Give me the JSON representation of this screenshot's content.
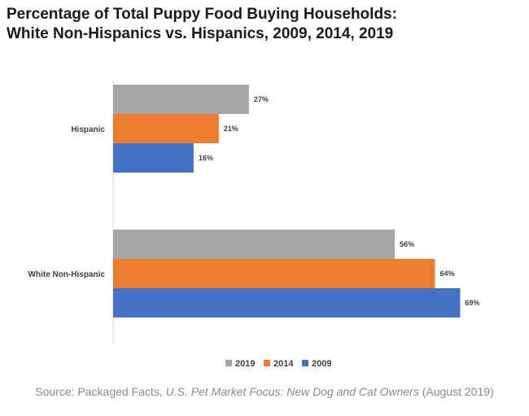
{
  "chart_data": {
    "type": "bar",
    "orientation": "horizontal",
    "title_lines": [
      "Percentage of Total Puppy Food Buying Households:",
      "White Non-Hispanics vs. Hispanics, 2009, 2014, 2019"
    ],
    "categories": [
      "Hispanic",
      "White Non-Hispanic"
    ],
    "series": [
      {
        "name": "2019",
        "color": "#a5a5a5",
        "values": [
          27,
          56
        ],
        "labels": [
          "27%",
          "56%"
        ]
      },
      {
        "name": "2014",
        "color": "#ed7d31",
        "values": [
          21,
          64
        ],
        "labels": [
          "21%",
          "64%"
        ]
      },
      {
        "name": "2009",
        "color": "#4472c4",
        "values": [
          16,
          69
        ],
        "labels": [
          "16%",
          "69%"
        ]
      }
    ],
    "xlim": [
      0,
      70
    ],
    "grid": false,
    "legend_position": "bottom"
  },
  "source": {
    "prefix": "Source: Packaged Facts, ",
    "publication": "U.S. Pet Market Focus: New Dog and Cat Owners",
    "suffix": " (August 2019)"
  }
}
